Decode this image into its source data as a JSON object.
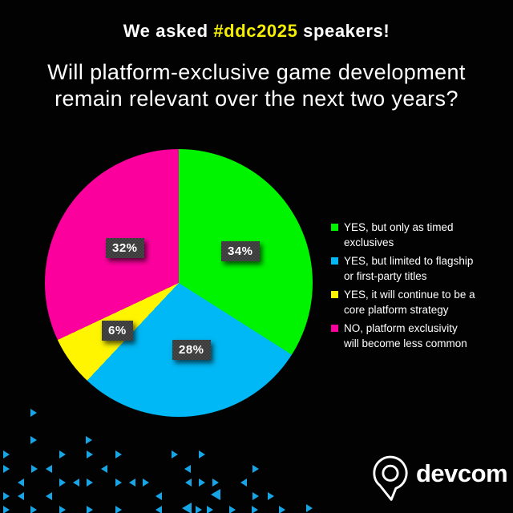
{
  "header": {
    "text_before": "We asked ",
    "hashtag": "#ddc2025",
    "text_after": " speakers!",
    "hashtag_color": "#f4ee00"
  },
  "title": {
    "line1": "Will platform-exclusive game development",
    "line2": "remain relevant over the next two years?"
  },
  "chart_data": {
    "type": "pie",
    "title": "Will platform-exclusive game development remain relevant over the next two years?",
    "start_angle_deg": 0,
    "direction": "clockwise",
    "legend_position": "right",
    "slices": [
      {
        "label": "YES, but only as timed exclusives",
        "value": 34,
        "pct_label": "34%",
        "color": "#00f400"
      },
      {
        "label": "YES, but limited to flagship or first-party titles",
        "value": 28,
        "pct_label": "28%",
        "color": "#00b8f5"
      },
      {
        "label": "YES, it will continue to be a core platform strategy",
        "value": 6,
        "pct_label": "6%",
        "color": "#fff500"
      },
      {
        "label": "NO, platform exclusivity will become less common",
        "value": 32,
        "pct_label": "32%",
        "color": "#fc009e"
      }
    ]
  },
  "legend": {
    "items": [
      {
        "line1": "YES, but only as timed",
        "line2": "exclusives"
      },
      {
        "line1": "YES, but limited to flagship",
        "line2": "or first-party titles"
      },
      {
        "line1": "YES, it will continue to be a",
        "line2": "core platform strategy"
      },
      {
        "line1": "NO, platform exclusivity",
        "line2": "will become less common"
      }
    ]
  },
  "footer": {
    "brand": "devcom",
    "logo": "devcom-pin-logo"
  },
  "decor": {
    "triangle_color": "#17a5e6",
    "triangles": [
      [
        38,
        510,
        "r",
        0
      ],
      [
        38,
        544,
        "r",
        0
      ],
      [
        107,
        544,
        "r",
        0
      ],
      [
        4,
        562,
        "r",
        0
      ],
      [
        74,
        562,
        "r",
        0
      ],
      [
        108,
        562,
        "r",
        0
      ],
      [
        144,
        562,
        "r",
        0
      ],
      [
        214,
        562,
        "r",
        0
      ],
      [
        248,
        562,
        "r",
        0
      ],
      [
        4,
        580,
        "r",
        0
      ],
      [
        39,
        580,
        "r",
        0
      ],
      [
        57,
        580,
        "l",
        0
      ],
      [
        126,
        580,
        "l",
        0
      ],
      [
        230,
        580,
        "l",
        0
      ],
      [
        315,
        580,
        "r",
        0
      ],
      [
        22,
        597,
        "l",
        0
      ],
      [
        74,
        597,
        "r",
        0
      ],
      [
        91,
        597,
        "l",
        0
      ],
      [
        108,
        597,
        "r",
        0
      ],
      [
        144,
        597,
        "r",
        0
      ],
      [
        161,
        597,
        "l",
        0
      ],
      [
        178,
        597,
        "r",
        0
      ],
      [
        231,
        597,
        "l",
        0
      ],
      [
        248,
        597,
        "r",
        0
      ],
      [
        265,
        597,
        "r",
        0
      ],
      [
        300,
        597,
        "l",
        0
      ],
      [
        4,
        614,
        "r",
        0
      ],
      [
        22,
        614,
        "l",
        0
      ],
      [
        57,
        614,
        "l",
        0
      ],
      [
        194,
        614,
        "l",
        0
      ],
      [
        263,
        610,
        "l",
        1
      ],
      [
        315,
        614,
        "r",
        0
      ],
      [
        334,
        614,
        "r",
        0
      ],
      [
        4,
        631,
        "r",
        0
      ],
      [
        38,
        631,
        "r",
        0
      ],
      [
        74,
        631,
        "r",
        0
      ],
      [
        108,
        631,
        "r",
        0
      ],
      [
        144,
        631,
        "r",
        0
      ],
      [
        194,
        631,
        "l",
        0
      ],
      [
        227,
        627,
        "l",
        1
      ],
      [
        244,
        631,
        "r",
        0
      ],
      [
        258,
        631,
        "r",
        0
      ],
      [
        286,
        631,
        "r",
        0
      ],
      [
        314,
        631,
        "r",
        0
      ],
      [
        348,
        631,
        "r",
        0
      ],
      [
        382,
        629,
        "r",
        0
      ]
    ]
  }
}
